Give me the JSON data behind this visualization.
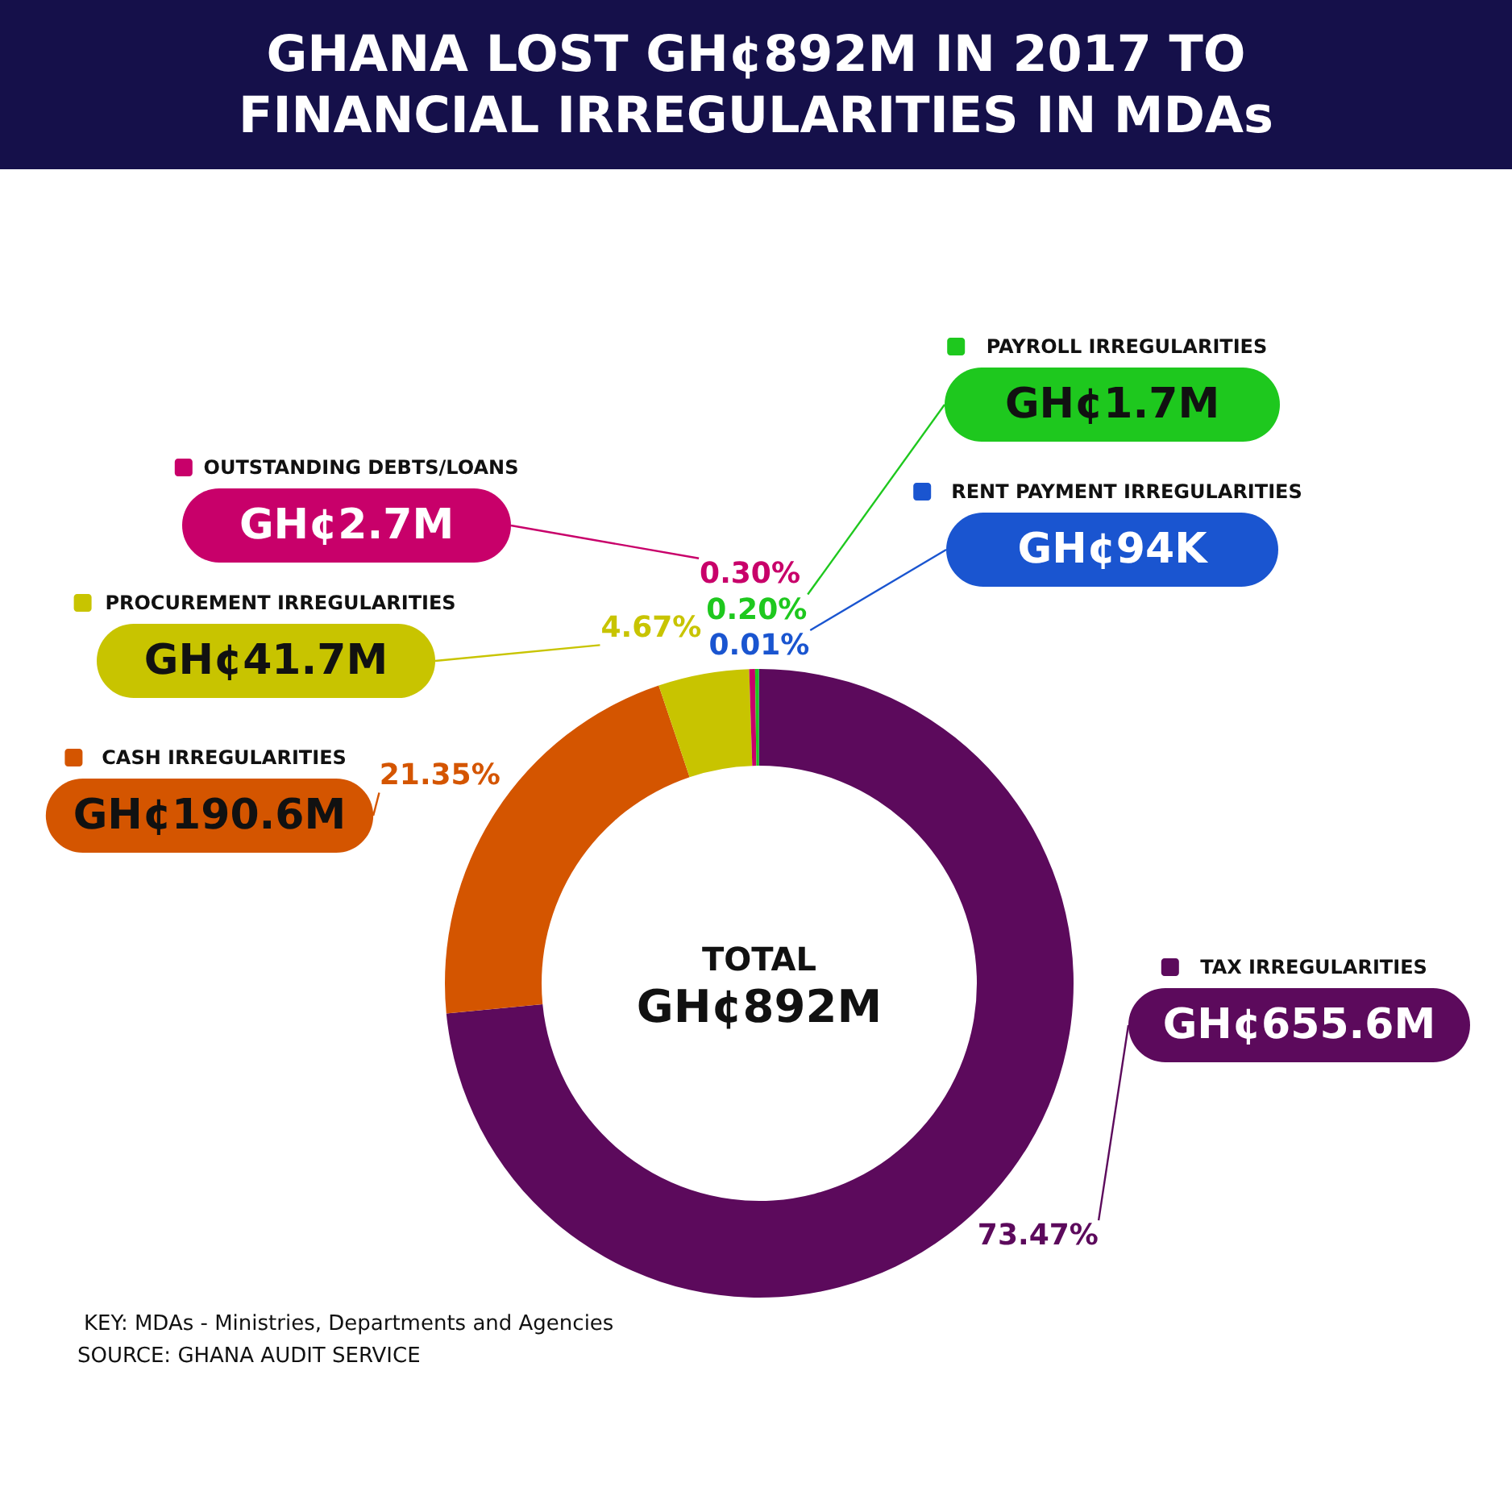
{
  "chart_data": {
    "type": "donut",
    "title": "GHANA LOST GH¢892M IN 2017 TO FINANCIAL IRREGULARITIES IN MDAs",
    "categories": [
      "TAX IRREGULARITIES",
      "CASH IRREGULARITIES",
      "PROCUREMENT IRREGULARITIES",
      "OUTSTANDING DEBTS/LOANS",
      "PAYROLL IRREGULARITIES",
      "RENT PAYMENT IRREGULARITIES"
    ],
    "values": [
      73.47,
      21.35,
      4.67,
      0.3,
      0.2,
      0.01
    ],
    "colors": [
      "#5c0a5c",
      "#d45500",
      "#c8c400",
      "#c8006a",
      "#1ec81e",
      "#1a55d0"
    ],
    "value_labels": [
      "73.47%",
      "21.35%",
      "4.67%",
      "0.30%",
      "0.20%",
      "0.01%"
    ],
    "legend": "top left",
    "annotations": [
      "TOTAL",
      "GH¢892M",
      "KEY: MDAs - Ministries, Departments and Agencies",
      "SOURCE: GHANA AUDIT SERVICE",
      {
        "text": "GH¢655.6M",
        "x": "TAX IRREGULARITIES"
      },
      {
        "text": "GH¢190.6M",
        "x": "CASH IRREGULARITIES"
      },
      {
        "text": "GH¢41.7M",
        "x": "PROCUREMENT IRREGULARITIES"
      },
      {
        "text": "GH¢2.7M",
        "x": "OUTSTANDING DEBTS/LOANS"
      },
      {
        "text": "GH¢1.7M",
        "x": "PAYROLL IRREGULARITIES"
      },
      {
        "text": "GH¢94K",
        "x": "RENT PAYMENT IRREGULARITIES"
      }
    ]
  }
}
